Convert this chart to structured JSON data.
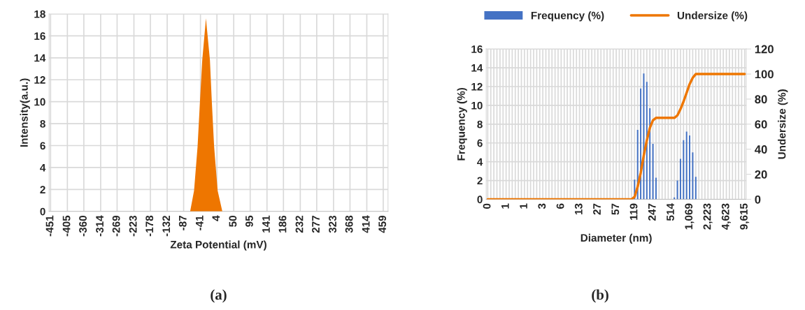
{
  "chart_data": [
    {
      "type": "area",
      "xlabel": "Zeta Potential (mV)",
      "ylabel": "Intensity(a.u.)",
      "annotations": [
        "(a)"
      ],
      "x": [
        -69.2,
        -58.5,
        -48.9,
        -42.4,
        -36.1,
        -26.0,
        -15.1,
        -9.9,
        -3.6,
        6.0,
        18.8
      ],
      "values": [
        0,
        1.9,
        5.9,
        10,
        13.8,
        17.6,
        13.8,
        10,
        5.9,
        1.9,
        0
      ],
      "color": "#ee7600",
      "xlim": [
        -455,
        472
      ],
      "xticks": [
        -451,
        -405,
        -360,
        -314,
        -269,
        -223,
        -178,
        -132,
        -87,
        -41,
        4,
        50,
        95,
        141,
        186,
        232,
        277,
        323,
        368,
        414,
        459
      ],
      "ylim": [
        0,
        18
      ],
      "yticks": [
        0,
        2,
        4,
        6,
        8,
        10,
        12,
        14,
        16,
        18
      ],
      "grid": true,
      "legend": false
    },
    {
      "type": "bar",
      "xlabel": "Diameter (nm)",
      "ylabel": "Frequency (%)",
      "y2label": "Undersize (%)",
      "annotations": [
        "(b)"
      ],
      "categories": [
        "0",
        null,
        null,
        null,
        null,
        null,
        "1",
        null,
        null,
        null,
        null,
        null,
        "1",
        null,
        null,
        null,
        null,
        null,
        "3",
        null,
        null,
        null,
        null,
        null,
        "6",
        null,
        null,
        null,
        null,
        null,
        "13",
        null,
        null,
        null,
        null,
        null,
        "27",
        null,
        null,
        null,
        null,
        null,
        "57",
        null,
        null,
        null,
        null,
        null,
        "119",
        null,
        null,
        null,
        null,
        null,
        "247",
        null,
        null,
        null,
        null,
        null,
        "514",
        null,
        null,
        null,
        null,
        null,
        "1,069",
        null,
        null,
        null,
        null,
        null,
        "2,223",
        null,
        null,
        null,
        null,
        null,
        "4,623",
        null,
        null,
        null,
        null,
        null,
        "9,615"
      ],
      "series": [
        {
          "name": "Frequency (%)",
          "type": "bar",
          "color": "#4472c4",
          "values": [
            0,
            0,
            0,
            0,
            0,
            0,
            0,
            0,
            0,
            0,
            0,
            0,
            0,
            0,
            0,
            0,
            0,
            0,
            0,
            0,
            0,
            0,
            0,
            0,
            0,
            0,
            0,
            0,
            0,
            0,
            0,
            0,
            0,
            0,
            0,
            0,
            0,
            0,
            0,
            0,
            0,
            0,
            0,
            0,
            0,
            0,
            0,
            0,
            2.1,
            7.4,
            11.8,
            13.4,
            12.5,
            9.7,
            5.9,
            2.3,
            0,
            0,
            0,
            0,
            0,
            0.2,
            2.0,
            4.3,
            6.3,
            7.2,
            6.8,
            5.0,
            2.4,
            0,
            0,
            0,
            0,
            0,
            0,
            0,
            0,
            0,
            0,
            0,
            0,
            0,
            0,
            0,
            0
          ]
        },
        {
          "name": "Undersize (%)",
          "type": "line",
          "axis": "y2",
          "color": "#ee7600",
          "values": [
            0,
            0,
            0,
            0,
            0,
            0,
            0,
            0,
            0,
            0,
            0,
            0,
            0,
            0,
            0,
            0,
            0,
            0,
            0,
            0,
            0,
            0,
            0,
            0,
            0,
            0,
            0,
            0,
            0,
            0,
            0,
            0,
            0,
            0,
            0,
            0,
            0,
            0,
            0,
            0,
            0,
            0,
            0,
            0,
            0,
            0,
            0,
            0,
            2,
            10,
            21,
            35,
            47,
            57,
            63,
            65,
            65,
            65,
            65,
            65,
            65,
            65,
            67,
            72,
            78,
            85,
            92,
            97,
            100,
            100,
            100,
            100,
            100,
            100,
            100,
            100,
            100,
            100,
            100,
            100,
            100,
            100,
            100,
            100,
            100
          ]
        }
      ],
      "ylim": [
        0,
        16
      ],
      "yticks": [
        0,
        2,
        4,
        6,
        8,
        10,
        12,
        14,
        16
      ],
      "y2lim": [
        0,
        120
      ],
      "y2ticks": [
        0,
        20,
        40,
        60,
        80,
        100,
        120
      ],
      "grid": true,
      "legend": "top"
    }
  ]
}
